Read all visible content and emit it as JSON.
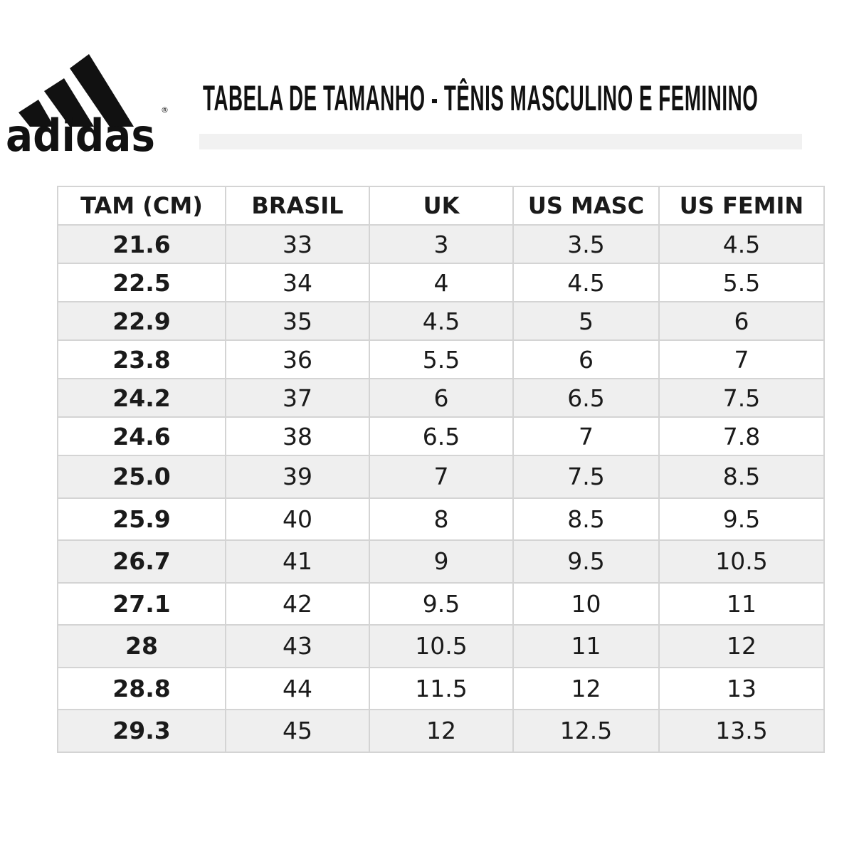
{
  "brand": {
    "logo_text": "adidas",
    "registered_mark": "®"
  },
  "header": {
    "title": "TABELA DE TAMANHO - TÊNIS MASCULINO E FEMININO"
  },
  "table": {
    "columns": [
      "TAM (CM)",
      "BRASIL",
      "UK",
      "US MASC",
      "US FEMIN"
    ],
    "rows": [
      [
        "21.6",
        "33",
        "3",
        "3.5",
        "4.5"
      ],
      [
        "22.5",
        "34",
        "4",
        "4.5",
        "5.5"
      ],
      [
        "22.9",
        "35",
        "4.5",
        "5",
        "6"
      ],
      [
        "23.8",
        "36",
        "5.5",
        "6",
        "7"
      ],
      [
        "24.2",
        "37",
        "6",
        "6.5",
        "7.5"
      ],
      [
        "24.6",
        "38",
        "6.5",
        "7",
        "7.8"
      ],
      [
        "25.0",
        "39",
        "7",
        "7.5",
        "8.5"
      ],
      [
        "25.9",
        "40",
        "8",
        "8.5",
        "9.5"
      ],
      [
        "26.7",
        "41",
        "9",
        "9.5",
        "10.5"
      ],
      [
        "27.1",
        "42",
        "9.5",
        "10",
        "11"
      ],
      [
        "28",
        "43",
        "10.5",
        "11",
        "12"
      ],
      [
        "28.8",
        "44",
        "11.5",
        "12",
        "13"
      ],
      [
        "29.3",
        "45",
        "12",
        "12.5",
        "13.5"
      ]
    ]
  },
  "colors": {
    "stripe_row": "#efefef",
    "grid": "#d4d4d4",
    "text": "#1a1a1a"
  }
}
